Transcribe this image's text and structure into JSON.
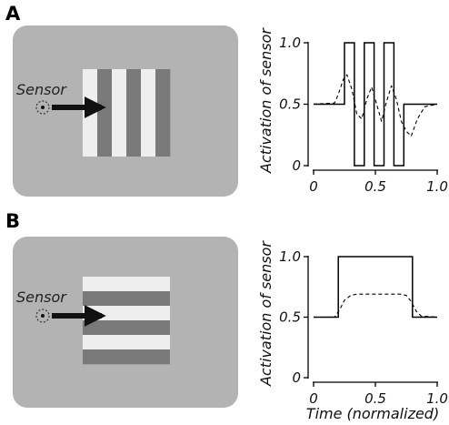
{
  "panels": [
    {
      "letter": "A",
      "sensor_label": "Sensor",
      "stripe_orientation": "vertical",
      "stimulus": {
        "background_color": "#b3b3b3",
        "stripe_light_color": "#eeeeee",
        "stripe_dark_color": "#7a7a7a",
        "stripe_count": 6
      }
    },
    {
      "letter": "B",
      "sensor_label": "Sensor",
      "stripe_orientation": "horizontal",
      "stimulus": {
        "background_color": "#b3b3b3",
        "stripe_light_color": "#eeeeee",
        "stripe_dark_color": "#7a7a7a",
        "stripe_count": 6
      }
    }
  ],
  "chart_data": [
    {
      "type": "line",
      "panel": "A",
      "xlabel": "",
      "ylabel": "Activation of sensor",
      "xlim": [
        0,
        1.0
      ],
      "ylim": [
        0,
        1.0
      ],
      "x_ticks": [
        0,
        0.5,
        1.0
      ],
      "x_tick_labels": [
        "0",
        "0.5",
        "1.0"
      ],
      "y_ticks": [
        0,
        0.5,
        1.0
      ],
      "y_tick_labels": [
        "0",
        "0.5",
        "1.0"
      ],
      "grid": false,
      "series": [
        {
          "style": "solid",
          "color": "#000000",
          "x": [
            0,
            0.2,
            0.2,
            0.25,
            0.25,
            0.33,
            0.33,
            0.41,
            0.41,
            0.49,
            0.49,
            0.57,
            0.57,
            0.65,
            0.65,
            0.73,
            0.73,
            0.8,
            0.8,
            1.0
          ],
          "y": [
            0.5,
            0.5,
            0.5,
            0.5,
            1.0,
            1.0,
            0.0,
            0.0,
            1.0,
            1.0,
            0.0,
            0.0,
            1.0,
            1.0,
            0.0,
            0.0,
            0.5,
            0.5,
            0.5,
            0.5
          ]
        },
        {
          "style": "dashed",
          "color": "#000000",
          "x": [
            0,
            0.17,
            0.2,
            0.24,
            0.27,
            0.31,
            0.35,
            0.39,
            0.43,
            0.47,
            0.51,
            0.55,
            0.59,
            0.63,
            0.67,
            0.71,
            0.75,
            0.79,
            0.84,
            0.9,
            1.0
          ],
          "y": [
            0.5,
            0.51,
            0.58,
            0.7,
            0.74,
            0.62,
            0.42,
            0.38,
            0.54,
            0.64,
            0.5,
            0.36,
            0.52,
            0.65,
            0.54,
            0.36,
            0.28,
            0.24,
            0.38,
            0.48,
            0.5
          ]
        }
      ]
    },
    {
      "type": "line",
      "panel": "B",
      "xlabel": "Time (normalized)",
      "ylabel": "Activation of sensor",
      "xlim": [
        0,
        1.0
      ],
      "ylim": [
        0,
        1.0
      ],
      "x_ticks": [
        0,
        0.5,
        1.0
      ],
      "x_tick_labels": [
        "0",
        "0.5",
        "1.0"
      ],
      "y_ticks": [
        0,
        0.5,
        1.0
      ],
      "y_tick_labels": [
        "0",
        "0.5",
        "1.0"
      ],
      "grid": false,
      "series": [
        {
          "style": "solid",
          "color": "#000000",
          "x": [
            0,
            0.2,
            0.2,
            0.8,
            0.8,
            1.0
          ],
          "y": [
            0.5,
            0.5,
            1.0,
            1.0,
            0.5,
            0.5
          ]
        },
        {
          "style": "dashed",
          "color": "#000000",
          "x": [
            0,
            0.17,
            0.21,
            0.25,
            0.3,
            0.35,
            0.4,
            0.7,
            0.75,
            0.79,
            0.83,
            0.87,
            1.0
          ],
          "y": [
            0.5,
            0.5,
            0.56,
            0.64,
            0.68,
            0.69,
            0.69,
            0.69,
            0.68,
            0.63,
            0.55,
            0.51,
            0.5
          ]
        }
      ]
    }
  ]
}
